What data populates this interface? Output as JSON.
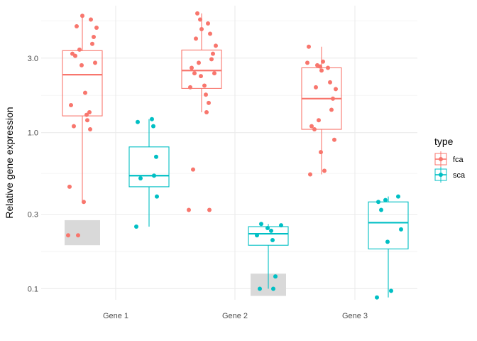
{
  "chart_data": {
    "type": "box",
    "title": "",
    "xlabel": "",
    "ylabel": "Relative gene expression",
    "y_scale": "log10",
    "ylim": [
      0.085,
      6.5
    ],
    "yticks": [
      0.1,
      0.3,
      1.0,
      3.0
    ],
    "ytick_labels": [
      "0.1",
      "0.3",
      "1.0",
      "3.0"
    ],
    "categories": [
      "Gene 1",
      "Gene 2",
      "Gene 3"
    ],
    "grid": true,
    "legend": {
      "title": "type",
      "position": "right",
      "entries": [
        {
          "name": "fca",
          "color": "#F8766D"
        },
        {
          "name": "sca",
          "color": "#00BFC4"
        }
      ]
    },
    "series": [
      {
        "name": "fca",
        "color": "#F8766D",
        "boxes": [
          {
            "category": "Gene 1",
            "whisker_low": 0.36,
            "q1": 1.28,
            "median": 2.35,
            "q3": 3.35,
            "whisker_high": 5.6
          },
          {
            "category": "Gene 2",
            "whisker_low": 1.35,
            "q1": 1.92,
            "median": 2.5,
            "q3": 3.38,
            "whisker_high": 5.8
          },
          {
            "category": "Gene 3",
            "whisker_low": 0.54,
            "q1": 1.05,
            "median": 1.65,
            "q3": 2.6,
            "whisker_high": 3.55
          }
        ],
        "points": [
          {
            "category": "Gene 1",
            "y": [
              5.6,
              5.3,
              4.8,
              4.7,
              4.1,
              3.7,
              3.4,
              3.2,
              3.1,
              2.8,
              2.7,
              1.8,
              1.5,
              1.3,
              1.35,
              1.2,
              1.1,
              1.05,
              0.45,
              0.36,
              0.22,
              0.22
            ]
          },
          {
            "category": "Gene 2",
            "y": [
              5.8,
              5.3,
              5.0,
              4.6,
              4.3,
              4.0,
              3.6,
              3.2,
              2.95,
              2.8,
              2.6,
              2.4,
              2.4,
              2.3,
              2.0,
              1.95,
              1.75,
              1.55,
              1.35,
              0.58,
              0.32,
              0.32
            ]
          },
          {
            "category": "Gene 3",
            "y": [
              3.55,
              2.85,
              2.8,
              2.7,
              2.65,
              2.6,
              2.5,
              2.1,
              1.95,
              1.9,
              1.65,
              1.4,
              1.2,
              1.1,
              1.05,
              0.9,
              0.75,
              0.57,
              0.54
            ]
          }
        ]
      },
      {
        "name": "sca",
        "color": "#00BFC4",
        "boxes": [
          {
            "category": "Gene 1",
            "whisker_low": 0.25,
            "q1": 0.45,
            "median": 0.53,
            "q3": 0.81,
            "whisker_high": 1.22
          },
          {
            "category": "Gene 2",
            "whisker_low": 0.1,
            "q1": 0.19,
            "median": 0.225,
            "q3": 0.25,
            "whisker_high": 0.26
          },
          {
            "category": "Gene 3",
            "whisker_low": 0.088,
            "q1": 0.18,
            "median": 0.265,
            "q3": 0.36,
            "whisker_high": 0.39
          }
        ],
        "points": [
          {
            "category": "Gene 1",
            "y": [
              1.22,
              1.17,
              1.1,
              0.7,
              0.53,
              0.51,
              0.39,
              0.25
            ]
          },
          {
            "category": "Gene 2",
            "y": [
              0.26,
              0.255,
              0.245,
              0.235,
              0.22,
              0.205,
              0.12,
              0.1,
              0.1
            ]
          },
          {
            "category": "Gene 3",
            "y": [
              0.39,
              0.37,
              0.36,
              0.32,
              0.24,
              0.2,
              0.097,
              0.088
            ]
          }
        ]
      }
    ],
    "shaded_regions": [
      {
        "category": "Gene 1",
        "series": "fca",
        "y_low": 0.19,
        "y_high": 0.275,
        "color": "#D9D9D9"
      },
      {
        "category": "Gene 2",
        "series": "sca",
        "y_low": 0.09,
        "y_high": 0.125,
        "color": "#D9D9D9"
      }
    ]
  }
}
